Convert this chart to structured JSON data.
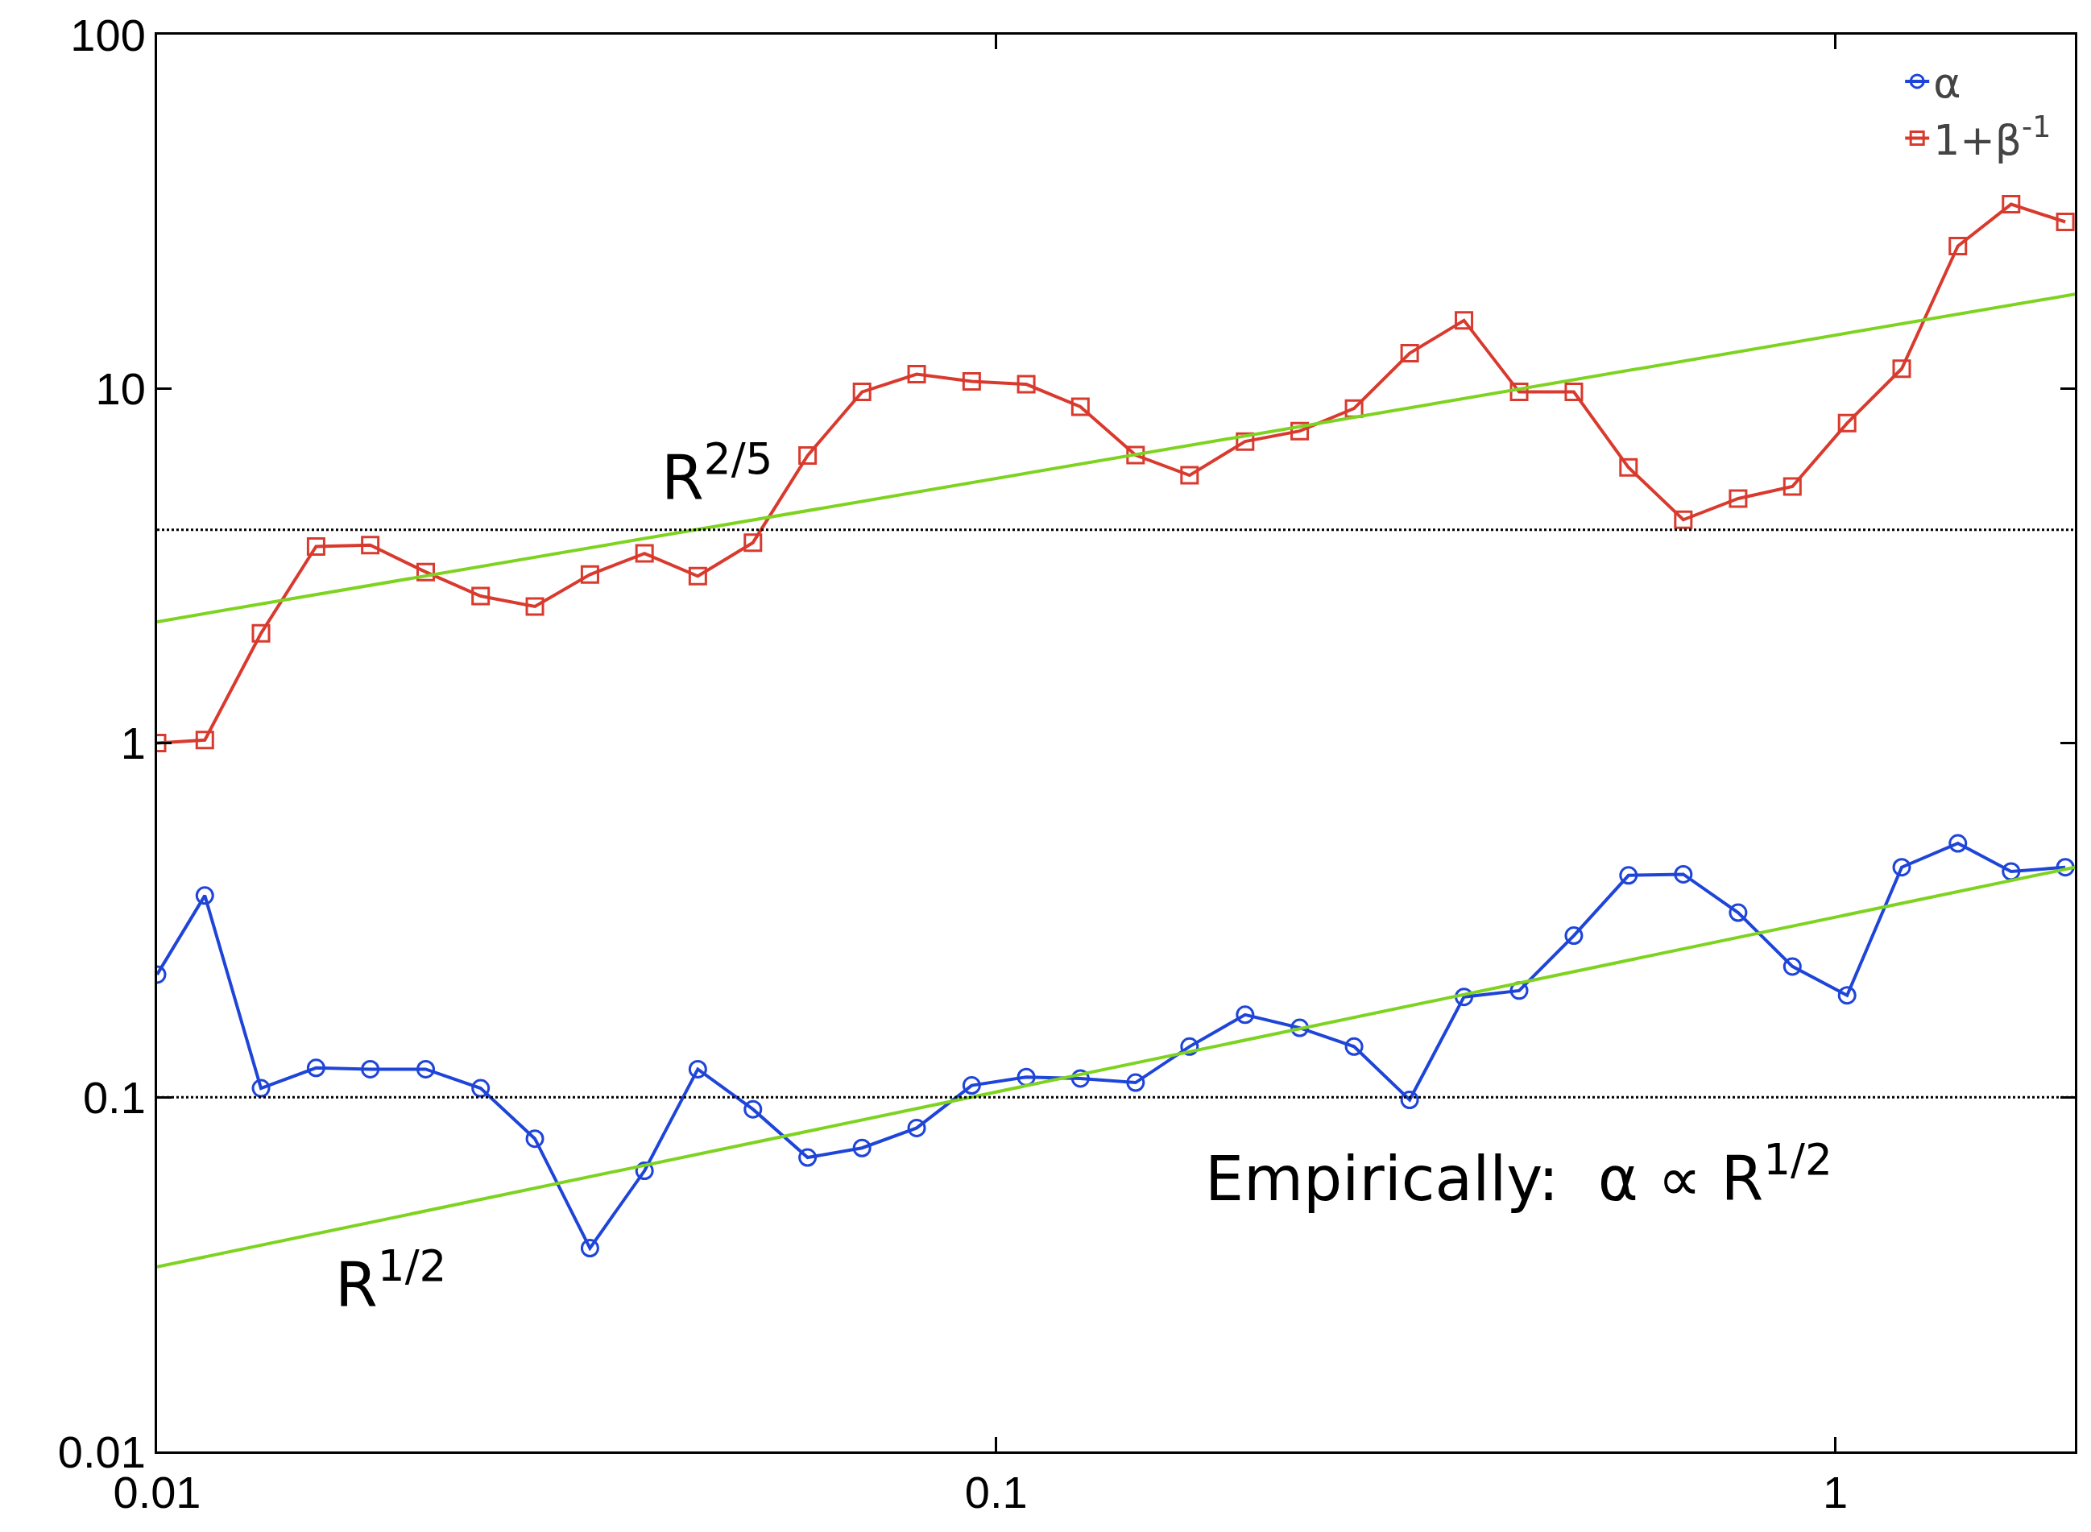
{
  "chart_data": {
    "type": "line",
    "log": "xy",
    "xlim": [
      0.01,
      1.93
    ],
    "ylim": [
      0.01,
      100
    ],
    "xticks": [
      0.01,
      0.1,
      1
    ],
    "yticks": [
      0.01,
      0.1,
      1,
      10,
      100
    ],
    "grid": false,
    "legend": "top right",
    "line_style": "solid",
    "series": [
      {
        "name": "α",
        "color": "#1f45d8",
        "marker": "circle",
        "x": [
          0.01,
          0.0114,
          0.0133,
          0.01547,
          0.01795,
          0.0209,
          0.0243,
          0.0282,
          0.0328,
          0.0381,
          0.0441,
          0.0513,
          0.0596,
          0.0692,
          0.0804,
          0.0935,
          0.1086,
          0.126,
          0.1466,
          0.17,
          0.198,
          0.23,
          0.267,
          0.311,
          0.361,
          0.42,
          0.488,
          0.567,
          0.659,
          0.766,
          0.889,
          1.033,
          1.2,
          1.4,
          1.62,
          1.88
        ],
        "values": [
          0.222,
          0.371,
          0.106,
          0.121,
          0.12,
          0.12,
          0.106,
          0.0764,
          0.0375,
          0.062,
          0.12,
          0.0925,
          0.0676,
          0.0719,
          0.0819,
          0.108,
          0.114,
          0.113,
          0.11,
          0.139,
          0.171,
          0.157,
          0.139,
          0.0983,
          0.192,
          0.2,
          0.286,
          0.423,
          0.426,
          0.332,
          0.234,
          0.194,
          0.446,
          0.521,
          0.434,
          0.446
        ]
      },
      {
        "name": "1+β$^{-1}$",
        "color": "#d93a2e",
        "marker": "square",
        "x": [
          0.01,
          0.0114,
          0.0133,
          0.01547,
          0.01795,
          0.0209,
          0.0243,
          0.0282,
          0.0328,
          0.0381,
          0.0441,
          0.0513,
          0.0596,
          0.0692,
          0.0804,
          0.0935,
          0.1086,
          0.126,
          0.1466,
          0.17,
          0.198,
          0.23,
          0.267,
          0.311,
          0.361,
          0.42,
          0.488,
          0.567,
          0.659,
          0.766,
          0.889,
          1.033,
          1.2,
          1.4,
          1.62,
          1.88
        ],
        "values": [
          1.0,
          1.02,
          2.04,
          3.59,
          3.62,
          3.04,
          2.6,
          2.43,
          2.99,
          3.43,
          2.96,
          3.68,
          6.48,
          9.8,
          11.0,
          10.5,
          10.3,
          8.9,
          6.5,
          5.7,
          7.1,
          7.6,
          8.8,
          12.6,
          15.6,
          9.8,
          9.8,
          6.0,
          4.27,
          4.9,
          5.3,
          8.0,
          11.4,
          25.3,
          33.2,
          29.6
        ]
      },
      {
        "type": "line",
        "color": "#7ed321",
        "marker": "none",
        "x": [
          0.01,
          1.93
        ],
        "values": [
          2.2,
          18.5
        ]
      },
      {
        "type": "line",
        "color": "#7ed321",
        "marker": "none",
        "x": [
          0.01,
          1.93
        ],
        "values": [
          0.0332,
          0.446
        ]
      }
    ],
    "ref_lines": [
      {
        "axis": "y",
        "value": 4,
        "color": "#000000",
        "line_style": "dotted"
      },
      {
        "axis": "y",
        "value": 0.1,
        "color": "#000000",
        "line_style": "dotted"
      }
    ],
    "annotations": [
      "R$^{2/5}$",
      "R$^{1/2}$",
      "Empirically:  α ∝ R$^{1/2}$"
    ]
  }
}
